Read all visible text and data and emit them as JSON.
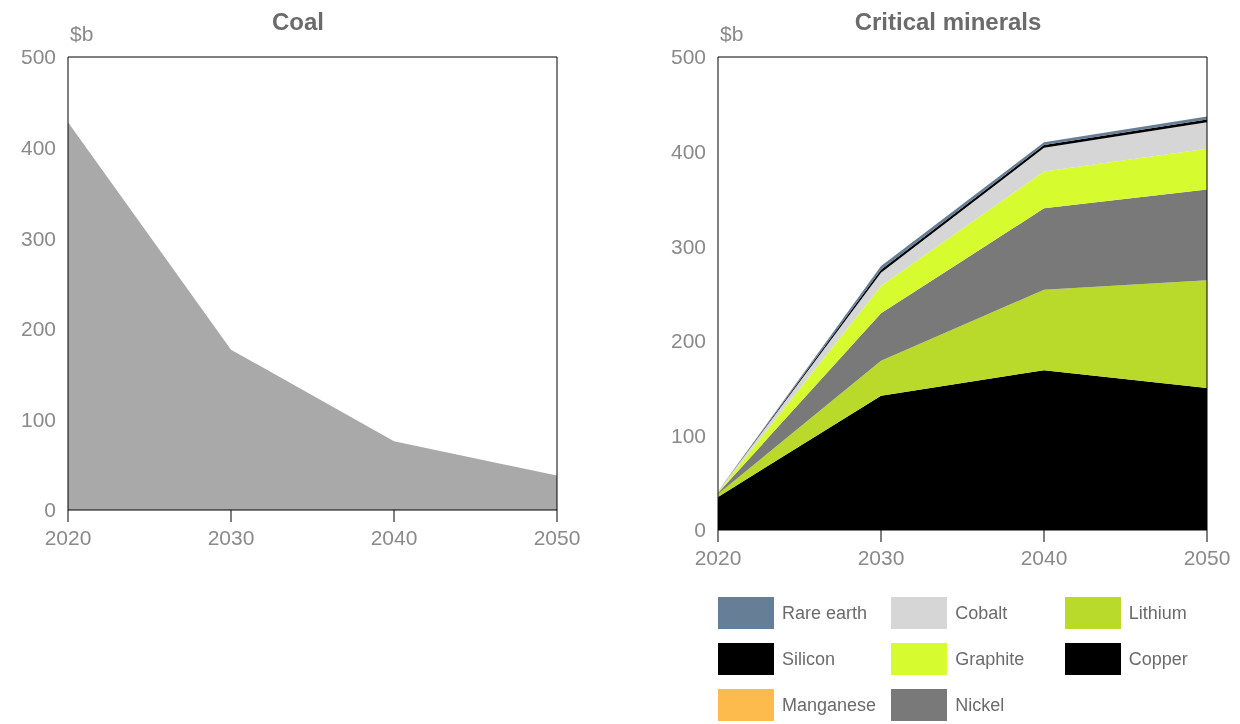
{
  "chart_data": [
    {
      "type": "area",
      "title": "Coal",
      "ylabel": "$b",
      "x": [
        2020,
        2030,
        2040,
        2050
      ],
      "xlim": [
        2020,
        2050
      ],
      "xticks": [
        2020,
        2030,
        2040,
        2050
      ],
      "ylim": [
        0,
        500
      ],
      "yticks": [
        0,
        100,
        200,
        300,
        400,
        500
      ],
      "grid": false,
      "legend": false,
      "series": [
        {
          "color": "#a9a9a9",
          "values": [
            428,
            177,
            76,
            38
          ]
        }
      ]
    },
    {
      "type": "area",
      "title": "Critical minerals",
      "ylabel": "$b",
      "x": [
        2020,
        2030,
        2040,
        2050
      ],
      "xlim": [
        2020,
        2050
      ],
      "xticks": [
        2020,
        2030,
        2040,
        2050
      ],
      "ylim": [
        0,
        500
      ],
      "yticks": [
        0,
        100,
        200,
        300,
        400,
        500
      ],
      "grid": false,
      "legend": "bottom",
      "stacked": true,
      "series": [
        {
          "name": "Copper",
          "color": "#000000",
          "values": [
            35,
            142,
            169,
            150
          ]
        },
        {
          "name": "Lithium",
          "color": "#b9da2a",
          "values": [
            3,
            37,
            85,
            114
          ]
        },
        {
          "name": "Nickel",
          "color": "#797979",
          "values": [
            1,
            50,
            86,
            96
          ]
        },
        {
          "name": "Graphite",
          "color": "#d6fc2f",
          "values": [
            1,
            29,
            39,
            43
          ]
        },
        {
          "name": "Cobalt",
          "color": "#d6d6d6",
          "values": [
            1,
            14,
            25,
            28
          ]
        },
        {
          "name": "Manganese",
          "color": "#fdba4d",
          "values": [
            null,
            null,
            null,
            null
          ]
        },
        {
          "name": "Silicon",
          "color": "#000000",
          "values": [
            0,
            3,
            3,
            3
          ]
        },
        {
          "name": "Rare earth",
          "color": "#667e96",
          "values": [
            0,
            4,
            3,
            3
          ]
        }
      ]
    }
  ]
}
